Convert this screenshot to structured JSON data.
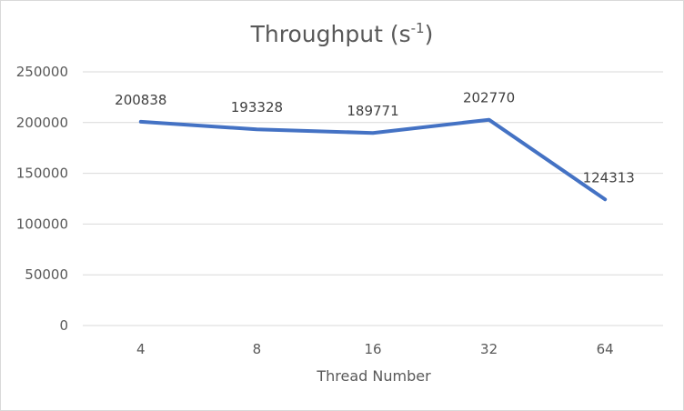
{
  "chart_data": {
    "type": "line",
    "title": "Throughput (s",
    "title_superscript": "-1",
    "title_suffix": ")",
    "xlabel": "Thread Number",
    "ylabel": "",
    "categories": [
      "4",
      "8",
      "16",
      "32",
      "64"
    ],
    "series": [
      {
        "values": [
          200838,
          193328,
          189771,
          202770,
          124313
        ],
        "color": "#4472c4"
      }
    ],
    "data_labels": [
      "200838",
      "193328",
      "189771",
      "202770",
      "124313"
    ],
    "ylim": [
      0,
      250000
    ],
    "yticks": [
      0,
      50000,
      100000,
      150000,
      200000,
      250000
    ],
    "ytick_labels": [
      "0",
      "50000",
      "100000",
      "150000",
      "200000",
      "250000"
    ],
    "grid": true,
    "legend": "none"
  }
}
